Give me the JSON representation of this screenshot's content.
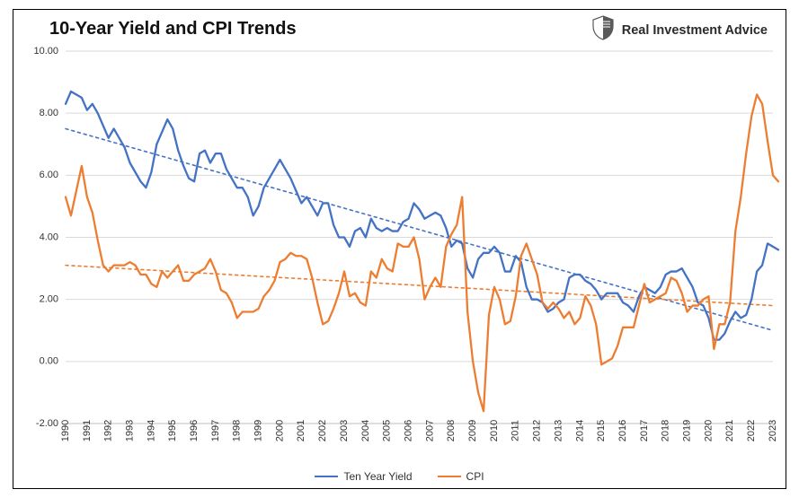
{
  "chart": {
    "type": "line",
    "title": "10-Year Yield and CPI Trends",
    "title_fontsize": 20,
    "brand": "Real Investment Advice",
    "brand_fontsize": 14.5,
    "brand_color": "#2b2b2b",
    "background_color": "#ffffff",
    "border_color": "#000000",
    "grid_color": "#d9d9d9",
    "axis_color": "#bfbfbf",
    "tick_label_fontsize": 11,
    "tick_label_color": "#333333",
    "ylim": [
      -2,
      10
    ],
    "ytick_step": 2,
    "yticks": [
      "-2.00",
      "0.00",
      "2.00",
      "4.00",
      "6.00",
      "8.00",
      "10.00"
    ],
    "xlim": [
      1990,
      2023
    ],
    "xticks": [
      1990,
      1991,
      1992,
      1993,
      1994,
      1995,
      1996,
      1997,
      1998,
      1999,
      2000,
      2001,
      2002,
      2003,
      2004,
      2005,
      2006,
      2007,
      2008,
      2009,
      2010,
      2011,
      2012,
      2013,
      2014,
      2015,
      2016,
      2017,
      2018,
      2019,
      2020,
      2021,
      2022,
      2023
    ],
    "legend_fontsize": 12,
    "series": {
      "ten_year_yield": {
        "label": "Ten Year Yield",
        "color": "#4472c4",
        "line_width": 2.3,
        "data": [
          [
            1990,
            8.3
          ],
          [
            1990.25,
            8.7
          ],
          [
            1990.5,
            8.6
          ],
          [
            1990.75,
            8.5
          ],
          [
            1991,
            8.1
          ],
          [
            1991.25,
            8.3
          ],
          [
            1991.5,
            8.0
          ],
          [
            1991.75,
            7.6
          ],
          [
            1992,
            7.2
          ],
          [
            1992.25,
            7.5
          ],
          [
            1992.5,
            7.2
          ],
          [
            1992.75,
            6.9
          ],
          [
            1993,
            6.4
          ],
          [
            1993.25,
            6.1
          ],
          [
            1993.5,
            5.8
          ],
          [
            1993.75,
            5.6
          ],
          [
            1994,
            6.1
          ],
          [
            1994.25,
            7.0
          ],
          [
            1994.5,
            7.4
          ],
          [
            1994.75,
            7.8
          ],
          [
            1995,
            7.5
          ],
          [
            1995.25,
            6.8
          ],
          [
            1995.5,
            6.3
          ],
          [
            1995.75,
            5.9
          ],
          [
            1996,
            5.8
          ],
          [
            1996.25,
            6.7
          ],
          [
            1996.5,
            6.8
          ],
          [
            1996.75,
            6.4
          ],
          [
            1997,
            6.7
          ],
          [
            1997.25,
            6.7
          ],
          [
            1997.5,
            6.2
          ],
          [
            1997.75,
            5.9
          ],
          [
            1998,
            5.6
          ],
          [
            1998.25,
            5.6
          ],
          [
            1998.5,
            5.3
          ],
          [
            1998.75,
            4.7
          ],
          [
            1999,
            5.0
          ],
          [
            1999.25,
            5.6
          ],
          [
            1999.5,
            5.9
          ],
          [
            1999.75,
            6.2
          ],
          [
            2000,
            6.5
          ],
          [
            2000.25,
            6.2
          ],
          [
            2000.5,
            5.9
          ],
          [
            2000.75,
            5.5
          ],
          [
            2001,
            5.1
          ],
          [
            2001.25,
            5.3
          ],
          [
            2001.5,
            5.0
          ],
          [
            2001.75,
            4.7
          ],
          [
            2002,
            5.1
          ],
          [
            2002.25,
            5.1
          ],
          [
            2002.5,
            4.4
          ],
          [
            2002.75,
            4.0
          ],
          [
            2003,
            4.0
          ],
          [
            2003.25,
            3.7
          ],
          [
            2003.5,
            4.2
          ],
          [
            2003.75,
            4.3
          ],
          [
            2004,
            4.0
          ],
          [
            2004.25,
            4.6
          ],
          [
            2004.5,
            4.3
          ],
          [
            2004.75,
            4.2
          ],
          [
            2005,
            4.3
          ],
          [
            2005.25,
            4.2
          ],
          [
            2005.5,
            4.2
          ],
          [
            2005.75,
            4.5
          ],
          [
            2006,
            4.6
          ],
          [
            2006.25,
            5.1
          ],
          [
            2006.5,
            4.9
          ],
          [
            2006.75,
            4.6
          ],
          [
            2007,
            4.7
          ],
          [
            2007.25,
            4.8
          ],
          [
            2007.5,
            4.7
          ],
          [
            2007.75,
            4.3
          ],
          [
            2008,
            3.7
          ],
          [
            2008.25,
            3.9
          ],
          [
            2008.5,
            3.8
          ],
          [
            2008.75,
            3.0
          ],
          [
            2009,
            2.7
          ],
          [
            2009.25,
            3.3
          ],
          [
            2009.5,
            3.5
          ],
          [
            2009.75,
            3.5
          ],
          [
            2010,
            3.7
          ],
          [
            2010.25,
            3.5
          ],
          [
            2010.5,
            2.9
          ],
          [
            2010.75,
            2.9
          ],
          [
            2011,
            3.4
          ],
          [
            2011.25,
            3.2
          ],
          [
            2011.5,
            2.4
          ],
          [
            2011.75,
            2.0
          ],
          [
            2012,
            2.0
          ],
          [
            2012.25,
            1.9
          ],
          [
            2012.5,
            1.6
          ],
          [
            2012.75,
            1.7
          ],
          [
            2013,
            1.9
          ],
          [
            2013.25,
            2.0
          ],
          [
            2013.5,
            2.7
          ],
          [
            2013.75,
            2.8
          ],
          [
            2014,
            2.8
          ],
          [
            2014.25,
            2.6
          ],
          [
            2014.5,
            2.5
          ],
          [
            2014.75,
            2.3
          ],
          [
            2015,
            2.0
          ],
          [
            2015.25,
            2.2
          ],
          [
            2015.5,
            2.2
          ],
          [
            2015.75,
            2.2
          ],
          [
            2016,
            1.9
          ],
          [
            2016.25,
            1.8
          ],
          [
            2016.5,
            1.6
          ],
          [
            2016.75,
            2.1
          ],
          [
            2017,
            2.4
          ],
          [
            2017.25,
            2.3
          ],
          [
            2017.5,
            2.2
          ],
          [
            2017.75,
            2.4
          ],
          [
            2018,
            2.8
          ],
          [
            2018.25,
            2.9
          ],
          [
            2018.5,
            2.9
          ],
          [
            2018.75,
            3.0
          ],
          [
            2019,
            2.7
          ],
          [
            2019.25,
            2.4
          ],
          [
            2019.5,
            1.9
          ],
          [
            2019.75,
            1.8
          ],
          [
            2020,
            1.4
          ],
          [
            2020.25,
            0.7
          ],
          [
            2020.5,
            0.7
          ],
          [
            2020.75,
            0.9
          ],
          [
            2021,
            1.3
          ],
          [
            2021.25,
            1.6
          ],
          [
            2021.5,
            1.4
          ],
          [
            2021.75,
            1.5
          ],
          [
            2022,
            2.0
          ],
          [
            2022.25,
            2.9
          ],
          [
            2022.5,
            3.1
          ],
          [
            2022.75,
            3.8
          ],
          [
            2023,
            3.7
          ],
          [
            2023.25,
            3.6
          ]
        ]
      },
      "cpi": {
        "label": "CPI",
        "color": "#ed7d31",
        "line_width": 2.3,
        "data": [
          [
            1990,
            5.3
          ],
          [
            1990.25,
            4.7
          ],
          [
            1990.5,
            5.5
          ],
          [
            1990.75,
            6.3
          ],
          [
            1991,
            5.3
          ],
          [
            1991.25,
            4.8
          ],
          [
            1991.5,
            3.9
          ],
          [
            1991.75,
            3.1
          ],
          [
            1992,
            2.9
          ],
          [
            1992.25,
            3.1
          ],
          [
            1992.5,
            3.1
          ],
          [
            1992.75,
            3.1
          ],
          [
            1993,
            3.2
          ],
          [
            1993.25,
            3.1
          ],
          [
            1993.5,
            2.8
          ],
          [
            1993.75,
            2.8
          ],
          [
            1994,
            2.5
          ],
          [
            1994.25,
            2.4
          ],
          [
            1994.5,
            2.9
          ],
          [
            1994.75,
            2.7
          ],
          [
            1995,
            2.9
          ],
          [
            1995.25,
            3.1
          ],
          [
            1995.5,
            2.6
          ],
          [
            1995.75,
            2.6
          ],
          [
            1996,
            2.8
          ],
          [
            1996.25,
            2.9
          ],
          [
            1996.5,
            3.0
          ],
          [
            1996.75,
            3.3
          ],
          [
            1997,
            2.9
          ],
          [
            1997.25,
            2.3
          ],
          [
            1997.5,
            2.2
          ],
          [
            1997.75,
            1.9
          ],
          [
            1998,
            1.4
          ],
          [
            1998.25,
            1.6
          ],
          [
            1998.5,
            1.6
          ],
          [
            1998.75,
            1.6
          ],
          [
            1999,
            1.7
          ],
          [
            1999.25,
            2.1
          ],
          [
            1999.5,
            2.3
          ],
          [
            1999.75,
            2.6
          ],
          [
            2000,
            3.2
          ],
          [
            2000.25,
            3.3
          ],
          [
            2000.5,
            3.5
          ],
          [
            2000.75,
            3.4
          ],
          [
            2001,
            3.4
          ],
          [
            2001.25,
            3.3
          ],
          [
            2001.5,
            2.7
          ],
          [
            2001.75,
            1.9
          ],
          [
            2002,
            1.2
          ],
          [
            2002.25,
            1.3
          ],
          [
            2002.5,
            1.7
          ],
          [
            2002.75,
            2.2
          ],
          [
            2003,
            2.9
          ],
          [
            2003.25,
            2.1
          ],
          [
            2003.5,
            2.2
          ],
          [
            2003.75,
            1.9
          ],
          [
            2004,
            1.8
          ],
          [
            2004.25,
            2.9
          ],
          [
            2004.5,
            2.7
          ],
          [
            2004.75,
            3.3
          ],
          [
            2005,
            3.0
          ],
          [
            2005.25,
            2.9
          ],
          [
            2005.5,
            3.8
          ],
          [
            2005.75,
            3.7
          ],
          [
            2006,
            3.7
          ],
          [
            2006.25,
            4.0
          ],
          [
            2006.5,
            3.3
          ],
          [
            2006.75,
            2.0
          ],
          [
            2007,
            2.4
          ],
          [
            2007.25,
            2.7
          ],
          [
            2007.5,
            2.4
          ],
          [
            2007.75,
            3.7
          ],
          [
            2008,
            4.1
          ],
          [
            2008.25,
            4.4
          ],
          [
            2008.5,
            5.3
          ],
          [
            2008.75,
            1.6
          ],
          [
            2009,
            0.0
          ],
          [
            2009.25,
            -1.0
          ],
          [
            2009.5,
            -1.6
          ],
          [
            2009.75,
            1.5
          ],
          [
            2010,
            2.4
          ],
          [
            2010.25,
            2.0
          ],
          [
            2010.5,
            1.2
          ],
          [
            2010.75,
            1.3
          ],
          [
            2011,
            2.1
          ],
          [
            2011.25,
            3.4
          ],
          [
            2011.5,
            3.8
          ],
          [
            2011.75,
            3.3
          ],
          [
            2012,
            2.8
          ],
          [
            2012.25,
            1.9
          ],
          [
            2012.5,
            1.7
          ],
          [
            2012.75,
            1.9
          ],
          [
            2013,
            1.7
          ],
          [
            2013.25,
            1.4
          ],
          [
            2013.5,
            1.6
          ],
          [
            2013.75,
            1.2
          ],
          [
            2014,
            1.4
          ],
          [
            2014.25,
            2.1
          ],
          [
            2014.5,
            1.8
          ],
          [
            2014.75,
            1.2
          ],
          [
            2015,
            -0.1
          ],
          [
            2015.25,
            0.0
          ],
          [
            2015.5,
            0.1
          ],
          [
            2015.75,
            0.5
          ],
          [
            2016,
            1.1
          ],
          [
            2016.25,
            1.1
          ],
          [
            2016.5,
            1.1
          ],
          [
            2016.75,
            1.8
          ],
          [
            2017,
            2.5
          ],
          [
            2017.25,
            1.9
          ],
          [
            2017.5,
            2.0
          ],
          [
            2017.75,
            2.1
          ],
          [
            2018,
            2.2
          ],
          [
            2018.25,
            2.7
          ],
          [
            2018.5,
            2.6
          ],
          [
            2018.75,
            2.2
          ],
          [
            2019,
            1.6
          ],
          [
            2019.25,
            1.8
          ],
          [
            2019.5,
            1.8
          ],
          [
            2019.75,
            2.0
          ],
          [
            2020,
            2.1
          ],
          [
            2020.25,
            0.4
          ],
          [
            2020.5,
            1.2
          ],
          [
            2020.75,
            1.2
          ],
          [
            2021,
            1.9
          ],
          [
            2021.25,
            4.2
          ],
          [
            2021.5,
            5.3
          ],
          [
            2021.75,
            6.7
          ],
          [
            2022,
            7.9
          ],
          [
            2022.25,
            8.6
          ],
          [
            2022.5,
            8.3
          ],
          [
            2022.75,
            7.1
          ],
          [
            2023,
            6.0
          ],
          [
            2023.25,
            5.8
          ]
        ]
      }
    },
    "trend_lines": {
      "ten_year_yield": {
        "color": "#4472c4",
        "dash": "3,4",
        "line_width": 1.6,
        "start": [
          1990,
          7.5
        ],
        "end": [
          2023,
          1.0
        ]
      },
      "cpi": {
        "color": "#ed7d31",
        "dash": "3,4",
        "line_width": 1.6,
        "start": [
          1990,
          3.1
        ],
        "end": [
          2023,
          1.8
        ]
      }
    }
  }
}
